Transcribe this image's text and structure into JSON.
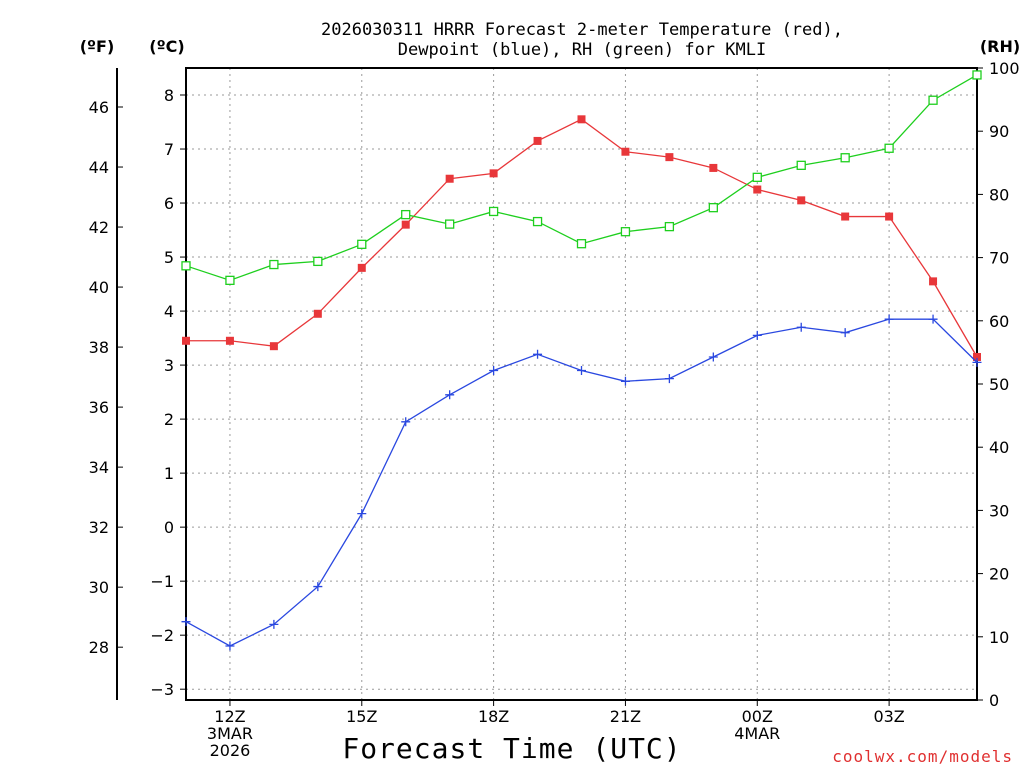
{
  "chart_data": {
    "type": "line",
    "title_line1": "2026030311 HRRR Forecast 2-meter Temperature (red),",
    "title_line2": "Dewpoint (blue), RH (green) for KMLI",
    "unit_f": "(ºF)",
    "unit_c": "(ºC)",
    "unit_rh": "(RH)",
    "xlabel": "Forecast Time (UTC)",
    "credit": "coolwx.com/models",
    "x_hours": [
      11,
      12,
      13,
      14,
      15,
      16,
      17,
      18,
      19,
      20,
      21,
      22,
      23,
      24,
      25,
      26,
      27,
      28,
      29
    ],
    "xlim": [
      11,
      29
    ],
    "x_ticks": [
      {
        "hour": 12,
        "lines": [
          "12Z",
          "3MAR",
          "2026"
        ]
      },
      {
        "hour": 15,
        "lines": [
          "15Z"
        ]
      },
      {
        "hour": 18,
        "lines": [
          "18Z"
        ]
      },
      {
        "hour": 21,
        "lines": [
          "21Z"
        ]
      },
      {
        "hour": 24,
        "lines": [
          "00Z",
          "4MAR"
        ]
      },
      {
        "hour": 27,
        "lines": [
          "03Z"
        ]
      }
    ],
    "celsius_axis": {
      "ylim": [
        -3.2,
        8.5
      ],
      "ticks": [
        "−3",
        "−2",
        "−1",
        "0",
        "1",
        "2",
        "3",
        "4",
        "5",
        "6",
        "7",
        "8"
      ]
    },
    "fahrenheit_axis": {
      "ticks": [
        "28",
        "30",
        "32",
        "34",
        "36",
        "38",
        "40",
        "42",
        "44",
        "46"
      ]
    },
    "rh_axis": {
      "ylim": [
        0,
        100
      ],
      "ticks": [
        "0",
        "10",
        "20",
        "30",
        "40",
        "50",
        "60",
        "70",
        "80",
        "90",
        "100"
      ]
    },
    "colors": {
      "temperature": "#e8373a",
      "dewpoint": "#2a48e0",
      "rh": "#1ecf1e"
    },
    "series": [
      {
        "name": "Temperature",
        "units": "C",
        "values": [
          3.45,
          3.45,
          3.35,
          3.95,
          4.8,
          5.6,
          6.45,
          6.55,
          7.15,
          7.55,
          6.95,
          6.85,
          6.65,
          6.25,
          6.05,
          5.75,
          5.75,
          4.55,
          3.15
        ]
      },
      {
        "name": "Dewpoint",
        "units": "C",
        "values": [
          -1.75,
          -2.2,
          -1.8,
          -1.1,
          0.25,
          1.95,
          2.45,
          2.9,
          3.2,
          2.9,
          2.7,
          2.75,
          3.15,
          3.55,
          3.7,
          3.6,
          3.85,
          3.85,
          3.05
        ]
      },
      {
        "name": "RH",
        "units": "%",
        "values": [
          68.7,
          66.4,
          68.9,
          69.4,
          72.1,
          76.8,
          75.3,
          77.3,
          75.7,
          72.2,
          74.1,
          74.9,
          77.9,
          82.7,
          84.6,
          85.8,
          87.3,
          94.9,
          98.9
        ]
      }
    ]
  }
}
